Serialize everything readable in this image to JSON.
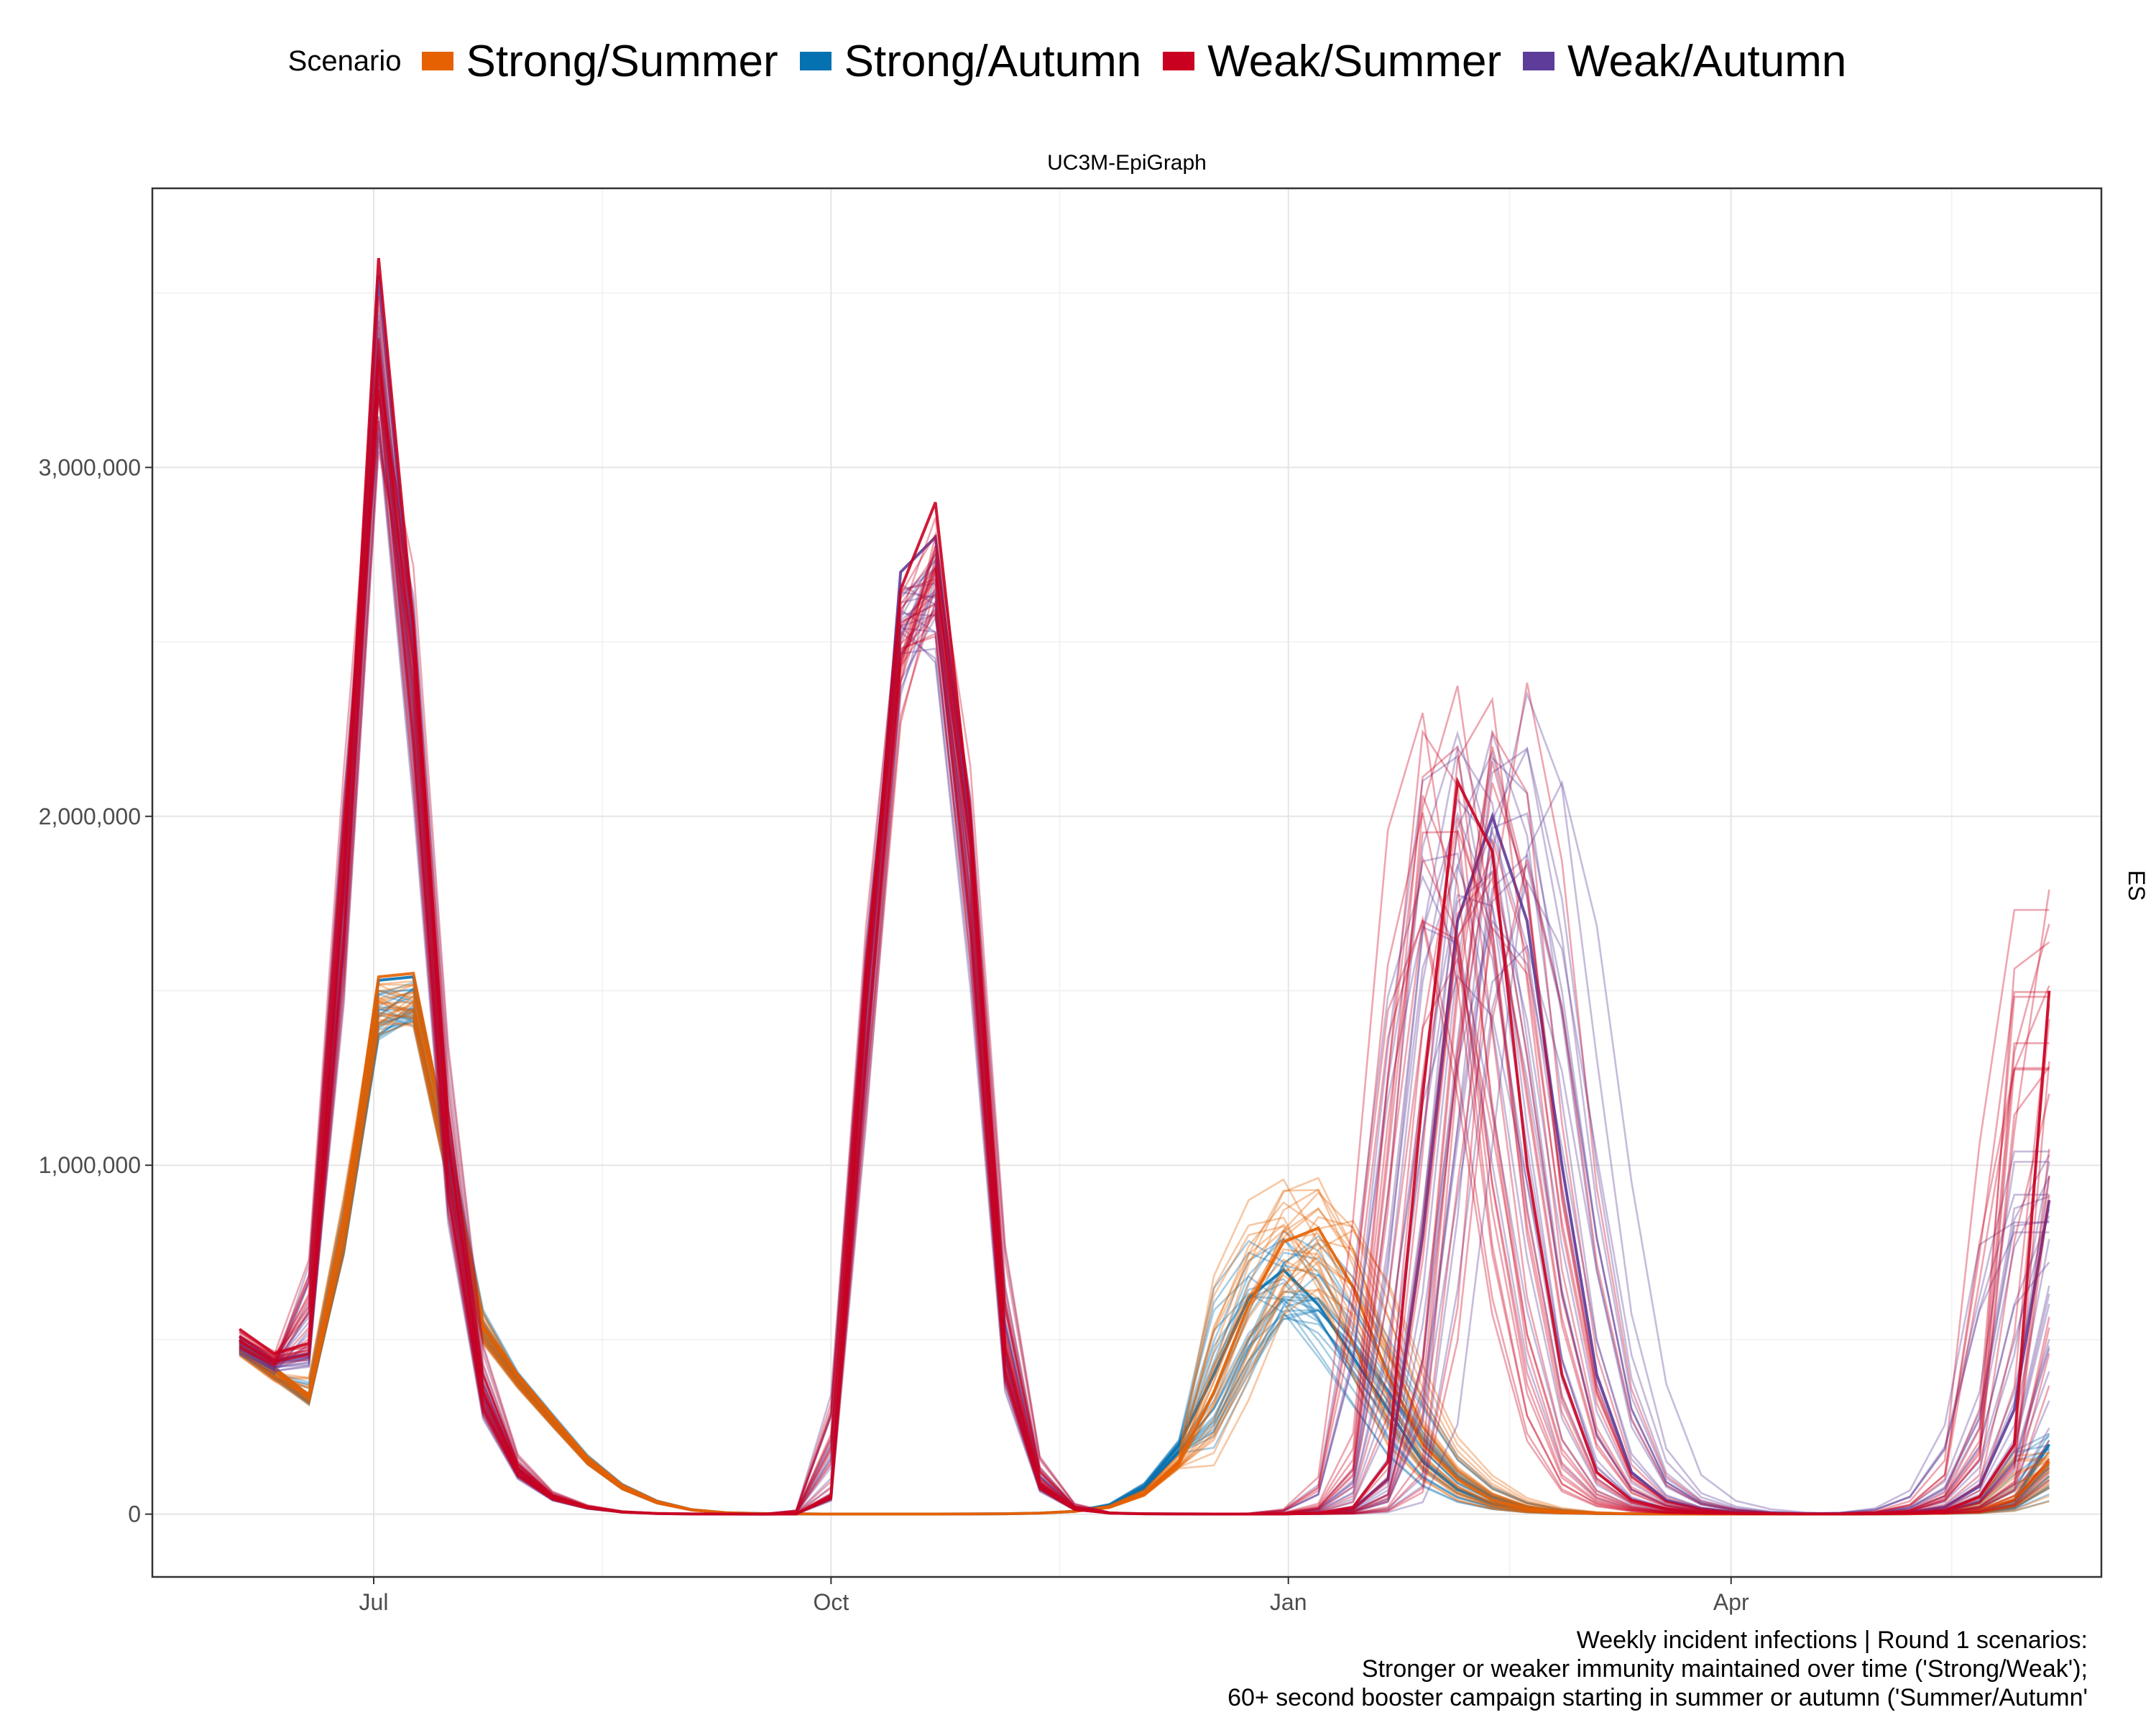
{
  "chart_data": {
    "type": "line",
    "title": "UC3M-EpiGraph",
    "facet_label": "ES",
    "legend": {
      "title": "Scenario",
      "position": "top",
      "entries": [
        {
          "name": "Strong/Summer",
          "color": "#E66101"
        },
        {
          "name": "Strong/Autumn",
          "color": "#0571B0"
        },
        {
          "name": "Weak/Summer",
          "color": "#CA0020"
        },
        {
          "name": "Weak/Autumn",
          "color": "#5E3C99"
        }
      ]
    },
    "caption": [
      "Weekly incident infections | Round 1 scenarios:",
      "Stronger or weaker immunity maintained over time ('Strong/Weak');",
      "60+ second booster campaign starting in summer or autumn ('Summer/Autumn'"
    ],
    "xlabel": "",
    "ylabel": "",
    "x_ticks": [
      "Jul",
      "Oct",
      "Jan",
      "Apr"
    ],
    "y_ticks": [
      "0",
      "1,000,000",
      "2,000,000",
      "3,000,000"
    ],
    "y_tick_values": [
      0,
      1000000,
      2000000,
      3000000
    ],
    "ylim": [
      -180000,
      3800000
    ],
    "x_unit": "weeks since first projection week (Jun 4)",
    "x_tick_weeks": [
      3.86,
      17.0,
      30.14,
      42.86
    ],
    "xlim": [
      -2.5,
      53.5
    ],
    "grid": true,
    "line_opacity": 0.35,
    "series": [
      {
        "name": "Weak/Summer median",
        "color": "#CA0020",
        "values": [
          530000,
          460000,
          490000,
          1850000,
          3600000,
          2550000,
          1070000,
          350000,
          130000,
          50000,
          20000,
          6000,
          2000,
          500,
          200,
          100,
          400,
          55000,
          1500000,
          2650000,
          2900000,
          2000000,
          480000,
          90000,
          15000,
          3000,
          1000,
          500,
          200,
          200,
          500,
          3000,
          20000,
          150000,
          1200000,
          2100000,
          1900000,
          1000000,
          400000,
          120000,
          40000,
          15000,
          5000,
          2000,
          1000,
          500,
          500,
          1000,
          3000,
          10000,
          50000,
          200000,
          1500000
        ]
      },
      {
        "name": "Weak/Autumn median",
        "color": "#5E3C99",
        "values": [
          510000,
          440000,
          460000,
          1800000,
          3550000,
          2500000,
          1050000,
          340000,
          125000,
          48000,
          19000,
          6000,
          2000,
          500,
          200,
          100,
          400,
          50000,
          1450000,
          2700000,
          2800000,
          1950000,
          460000,
          85000,
          15000,
          3000,
          1000,
          500,
          200,
          200,
          400,
          2500,
          15000,
          100000,
          800000,
          1700000,
          2000000,
          1700000,
          1000000,
          400000,
          120000,
          40000,
          15000,
          5000,
          2000,
          1000,
          1000,
          2000,
          5000,
          20000,
          80000,
          300000,
          900000
        ]
      },
      {
        "name": "Strong/Summer median",
        "color": "#E66101",
        "values": [
          500000,
          420000,
          340000,
          850000,
          1540000,
          1550000,
          1060000,
          540000,
          400000,
          280000,
          160000,
          80000,
          35000,
          12000,
          4000,
          1500,
          600,
          300,
          200,
          200,
          300,
          500,
          1000,
          3000,
          8000,
          20000,
          60000,
          150000,
          350000,
          600000,
          780000,
          820000,
          650000,
          400000,
          200000,
          100000,
          40000,
          15000,
          5000,
          2000,
          1000,
          500,
          300,
          200,
          200,
          200,
          300,
          500,
          1000,
          3000,
          10000,
          40000,
          150000
        ]
      },
      {
        "name": "Strong/Autumn median",
        "color": "#0571B0",
        "values": [
          500000,
          420000,
          340000,
          850000,
          1530000,
          1540000,
          1060000,
          540000,
          400000,
          280000,
          160000,
          80000,
          35000,
          12000,
          4000,
          1500,
          600,
          300,
          200,
          200,
          300,
          500,
          1000,
          3000,
          8000,
          25000,
          80000,
          200000,
          400000,
          620000,
          700000,
          600000,
          450000,
          300000,
          150000,
          70000,
          30000,
          12000,
          4000,
          1500,
          800,
          400,
          300,
          200,
          200,
          200,
          300,
          500,
          1000,
          3000,
          10000,
          40000,
          200000
        ]
      }
    ]
  }
}
